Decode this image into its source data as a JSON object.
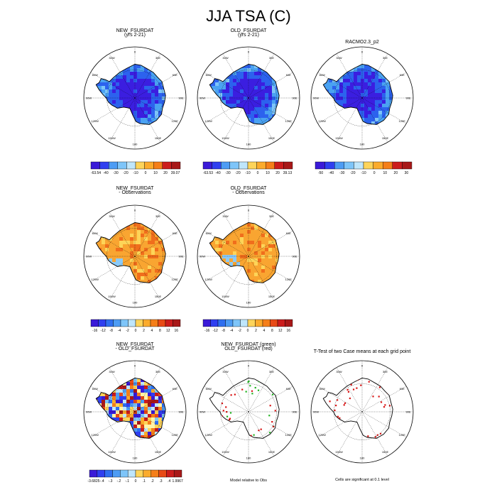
{
  "title": "JJA TSA (C)",
  "colors": {
    "ramp": [
      "#3a1ad8",
      "#2f3ff0",
      "#2f6ff0",
      "#4d9cf4",
      "#7ec5f9",
      "#bfe6fb",
      "#fff3a8",
      "#fdd45a",
      "#fbab2c",
      "#f57f19",
      "#e84a16",
      "#cc1c1c",
      "#a81818"
    ],
    "ice_abs_deep": "#3b1ee0",
    "ice_abs_mid": "#2c62ee",
    "ice_abs_edge": "#4aa2f2",
    "ice_diff_main": "#f9a531",
    "ice_diff_dark": "#f06e1c",
    "ice_diff_light": "#fdd458",
    "ice_diff_blue": "#8ccaf7",
    "green_dot": "#22b422",
    "red_dot": "#d81616"
  },
  "lon_labels": [
    "0",
    "30E",
    "60E",
    "90E",
    "120E",
    "150E",
    "180",
    "150W",
    "120W",
    "90W",
    "60W",
    "30W"
  ],
  "chart_data": [
    {
      "id": "p1",
      "type": "heatmap",
      "title": "NEW_FSURDAT",
      "subtitle": "(yrs 2-21)",
      "field": "absolute",
      "colorbar": {
        "labels": [
          "-63.54",
          "-40",
          "-30",
          "-20",
          "-10",
          "0",
          "10",
          "20",
          "39.07"
        ],
        "min": -63.54,
        "max": 39.07
      }
    },
    {
      "id": "p2",
      "type": "heatmap",
      "title": "OLD_FSURDAT",
      "subtitle": "(yrs 2-21)",
      "field": "absolute",
      "colorbar": {
        "labels": [
          "-63.53",
          "-40",
          "-30",
          "-20",
          "-10",
          "0",
          "10",
          "20",
          "39.13"
        ],
        "min": -63.53,
        "max": 39.13
      }
    },
    {
      "id": "p3",
      "type": "heatmap",
      "title": "RACMO2.3_p2",
      "subtitle": "",
      "field": "absolute",
      "colorbar": {
        "labels": [
          "-50",
          "-40",
          "-30",
          "-20",
          "-10",
          "0",
          "10",
          "20",
          "30"
        ],
        "min": -50,
        "max": 30
      }
    },
    {
      "id": "p4",
      "type": "heatmap",
      "title": "NEW_FSURDAT",
      "subtitle": "- Observations",
      "field": "difference",
      "colorbar": {
        "labels": [
          "-16",
          "-12",
          "-8",
          "-4",
          "-2",
          "0",
          "2",
          "4",
          "8",
          "12",
          "16"
        ],
        "min": -16,
        "max": 16
      }
    },
    {
      "id": "p5",
      "type": "heatmap",
      "title": "OLD_FSURDAT",
      "subtitle": "- Observations",
      "field": "difference",
      "colorbar": {
        "labels": [
          "-16",
          "-12",
          "-8",
          "-4",
          "-2",
          "0",
          "2",
          "4",
          "8",
          "12",
          "16"
        ],
        "min": -16,
        "max": 16
      }
    },
    {
      "id": "p6",
      "type": "heatmap",
      "title": "NEW_FSURDAT",
      "subtitle": "- OLD_FSURDAT",
      "field": "noise",
      "colorbar": {
        "labels": [
          "-3.6825",
          "-.4",
          "-.3",
          "-.2",
          "-.1",
          "0",
          ".1",
          ".2",
          ".3",
          ".4",
          "1.9967"
        ],
        "min": -3.6825,
        "max": 1.9967
      }
    },
    {
      "id": "p7",
      "type": "scatter",
      "title": "NEW_FSURDAT (green)",
      "subtitle": "OLD_FSURDAT (red)",
      "field": "points",
      "caption": "Model relative to Obs"
    },
    {
      "id": "p8",
      "type": "scatter",
      "title": "T-Test of two Case means at each grid point",
      "subtitle": "",
      "field": "ttest",
      "caption": "Cells are significant at 0.1 level"
    }
  ]
}
